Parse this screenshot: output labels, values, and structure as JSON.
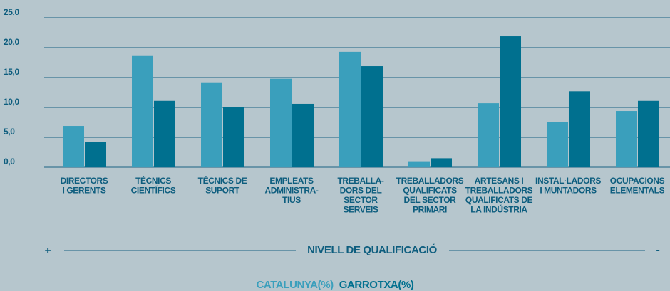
{
  "chart_data": {
    "type": "bar",
    "categories": [
      [
        "DIRECTORS",
        "I GERENTS"
      ],
      [
        "TÈCNICS",
        "CIENTÍFICS"
      ],
      [
        "TÈCNICS DE",
        "SUPORT"
      ],
      [
        "EMPLEATS",
        "ADMINISTRA-",
        "TIUS"
      ],
      [
        "TREBALLA-",
        "DORS DEL",
        "SECTOR",
        "SERVEIS"
      ],
      [
        "TREBALLADORS",
        "QUALIFICATS",
        "DEL SECTOR",
        "PRIMARI"
      ],
      [
        "ARTESANS I",
        "TREBALLADORS",
        "QUALIFICATS DE",
        "LA INDÚSTRIA"
      ],
      [
        "INSTAL·LADORS",
        "I MUNTADORS"
      ],
      [
        "OCUPACIONS",
        "ELEMENTALS"
      ]
    ],
    "series": [
      {
        "name": "CATALUNYA(%)",
        "color": "#3a9fbc",
        "values": [
          6.9,
          18.6,
          14.2,
          14.8,
          19.3,
          1.0,
          10.7,
          7.6,
          9.4
        ]
      },
      {
        "name": "GARROTXA(%)",
        "color": "#00708f",
        "values": [
          4.2,
          11.1,
          10.0,
          10.6,
          16.9,
          1.5,
          21.9,
          12.7,
          11.1
        ]
      }
    ],
    "ylim": [
      0,
      25
    ],
    "yticks": [
      {
        "value": 0,
        "label": "0,0"
      },
      {
        "value": 5,
        "label": "5,0"
      },
      {
        "value": 10,
        "label": "10,0"
      },
      {
        "value": 15,
        "label": "15,0"
      },
      {
        "value": 20,
        "label": "20,0"
      },
      {
        "value": 25,
        "label": "25,0"
      }
    ],
    "grid": true,
    "x_axis": {
      "low": "+",
      "label": "NIVELL DE QUALIFICACIÓ",
      "high": "-"
    }
  }
}
